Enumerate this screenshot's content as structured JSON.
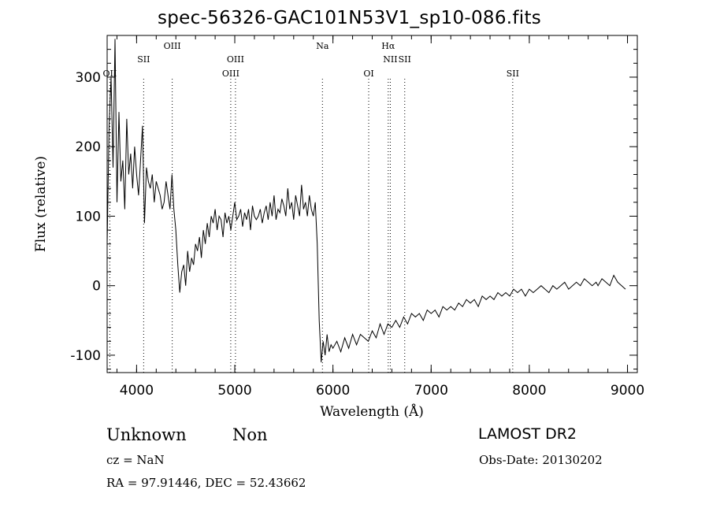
{
  "title": "spec-56326-GAC101N53V1_sp10-086.fits",
  "info": {
    "class": "Unknown",
    "subclass": "Non",
    "survey": "LAMOST DR2",
    "cz": "cz = NaN",
    "obs_date": "Obs-Date: 20130202",
    "radec": "RA =   97.91446, DEC =   52.43662"
  },
  "chart_data": {
    "type": "line",
    "title": "spec-56326-GAC101N53V1_sp10-086.fits",
    "xlabel": "Wavelength (Å)",
    "ylabel": "Flux (relative)",
    "xlim": [
      3700,
      9100
    ],
    "ylim": [
      -125,
      360
    ],
    "xticks": [
      4000,
      5000,
      6000,
      7000,
      8000,
      9000
    ],
    "yticks": [
      -100,
      0,
      100,
      200,
      300
    ],
    "grid": false,
    "line_color": "#000000",
    "lines": [
      {
        "label": "OII",
        "x": 3727,
        "row": 3
      },
      {
        "label": "SII",
        "x": 4072,
        "row": 2
      },
      {
        "label": "OIII",
        "x": 4363,
        "row": 1
      },
      {
        "label": "OIII",
        "x": 4959,
        "row": 3
      },
      {
        "label": "OIII",
        "x": 5007,
        "row": 2
      },
      {
        "label": "Na",
        "x": 5893,
        "row": 1
      },
      {
        "label": "OI",
        "x": 6364,
        "row": 3
      },
      {
        "label": "Hα",
        "x": 6563,
        "row": 1
      },
      {
        "label": "NII",
        "x": 6584,
        "row": 2
      },
      {
        "label": "SII",
        "x": 6731,
        "row": 2
      },
      {
        "label": "SII",
        "x": 7831,
        "row": 3
      }
    ],
    "series": [
      {
        "x": [
          3700,
          3720,
          3740,
          3760,
          3780,
          3800,
          3820,
          3840,
          3860,
          3880,
          3900,
          3920,
          3940,
          3960,
          3980,
          4000,
          4020,
          4040,
          4060,
          4080,
          4100,
          4120,
          4140,
          4160,
          4180,
          4200,
          4220,
          4240,
          4260,
          4280,
          4300,
          4320,
          4340,
          4360,
          4380,
          4400,
          4420,
          4440,
          4460,
          4480,
          4500,
          4520,
          4540,
          4560,
          4580,
          4600,
          4620,
          4640,
          4660,
          4680,
          4700,
          4720,
          4740,
          4760,
          4780,
          4800,
          4820,
          4840,
          4860,
          4880,
          4900,
          4920,
          4940,
          4960,
          4980,
          5000,
          5020,
          5040,
          5060,
          5080,
          5100,
          5120,
          5140,
          5160,
          5180,
          5200,
          5220,
          5240,
          5260,
          5280,
          5300,
          5320,
          5340,
          5360,
          5380,
          5400,
          5420,
          5440,
          5460,
          5480,
          5500,
          5520,
          5540,
          5560,
          5580,
          5600,
          5620,
          5640,
          5660,
          5680,
          5700,
          5720,
          5740,
          5760,
          5780,
          5800,
          5820,
          5840,
          5860,
          5880,
          5900,
          5920,
          5940,
          5960,
          5980,
          6000,
          6040,
          6080,
          6120,
          6160,
          6200,
          6240,
          6280,
          6320,
          6360,
          6400,
          6440,
          6480,
          6520,
          6560,
          6600,
          6640,
          6680,
          6720,
          6760,
          6800,
          6840,
          6880,
          6920,
          6960,
          7000,
          7040,
          7080,
          7120,
          7160,
          7200,
          7240,
          7280,
          7320,
          7360,
          7400,
          7440,
          7480,
          7520,
          7560,
          7600,
          7640,
          7680,
          7720,
          7760,
          7800,
          7840,
          7880,
          7920,
          7960,
          8000,
          8040,
          8080,
          8120,
          8160,
          8200,
          8240,
          8280,
          8320,
          8360,
          8400,
          8440,
          8480,
          8520,
          8560,
          8600,
          8640,
          8680,
          8700,
          8740,
          8780,
          8820,
          8860,
          8900,
          8940,
          8980
        ],
        "y": [
          60,
          230,
          300,
          170,
          355,
          120,
          250,
          150,
          180,
          110,
          240,
          160,
          190,
          140,
          200,
          160,
          130,
          180,
          230,
          90,
          170,
          150,
          140,
          160,
          120,
          150,
          140,
          130,
          110,
          120,
          150,
          130,
          110,
          160,
          110,
          80,
          30,
          -10,
          20,
          30,
          0,
          50,
          20,
          40,
          30,
          60,
          50,
          70,
          40,
          80,
          60,
          90,
          70,
          100,
          90,
          110,
          80,
          100,
          95,
          70,
          105,
          90,
          100,
          80,
          100,
          120,
          95,
          100,
          110,
          85,
          105,
          95,
          110,
          80,
          115,
          100,
          95,
          100,
          110,
          90,
          105,
          115,
          95,
          120,
          100,
          130,
          95,
          110,
          105,
          125,
          115,
          100,
          140,
          110,
          120,
          95,
          130,
          115,
          100,
          145,
          110,
          120,
          100,
          130,
          110,
          100,
          120,
          60,
          -50,
          -110,
          -80,
          -100,
          -70,
          -95,
          -85,
          -90,
          -80,
          -95,
          -75,
          -90,
          -70,
          -85,
          -70,
          -75,
          -80,
          -65,
          -75,
          -55,
          -70,
          -55,
          -60,
          -50,
          -60,
          -45,
          -55,
          -40,
          -45,
          -40,
          -50,
          -35,
          -40,
          -35,
          -45,
          -30,
          -35,
          -30,
          -35,
          -25,
          -30,
          -20,
          -25,
          -20,
          -30,
          -15,
          -20,
          -15,
          -20,
          -10,
          -15,
          -10,
          -15,
          -5,
          -10,
          -5,
          -15,
          -5,
          -10,
          -5,
          0,
          -5,
          -10,
          0,
          -5,
          0,
          5,
          -5,
          0,
          5,
          0,
          10,
          5,
          0,
          5,
          0,
          10,
          5,
          0,
          15,
          5,
          0,
          -5
        ]
      }
    ]
  }
}
